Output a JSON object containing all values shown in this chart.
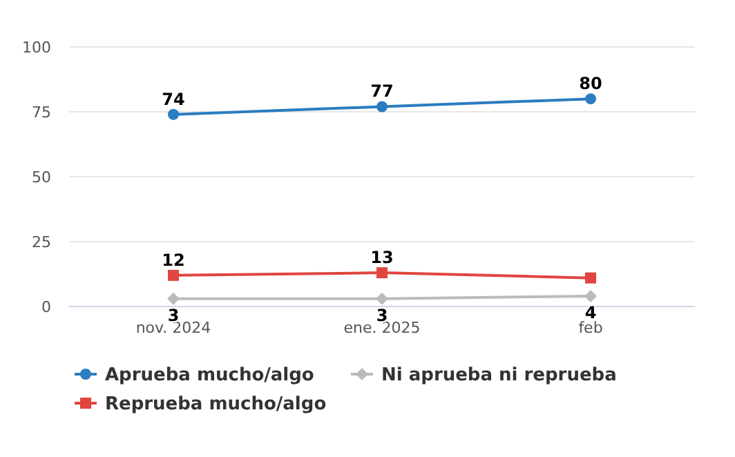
{
  "chart_data": {
    "type": "line",
    "categories": [
      "nov. 2024",
      "ene. 2025",
      "feb"
    ],
    "series": [
      {
        "name": "Aprueba mucho/algo",
        "color": "#2b7cc1",
        "marker": "circle",
        "values": [
          74,
          77,
          80
        ],
        "value_labels": [
          "74",
          "77",
          "80"
        ]
      },
      {
        "name": "Reprueba mucho/algo",
        "color": "#e0453f",
        "marker": "square",
        "values": [
          12,
          13,
          11
        ],
        "value_labels": [
          "12",
          "13",
          null
        ]
      },
      {
        "name": "Ni aprueba ni reprueba",
        "color": "#bbbbbb",
        "marker": "diamond",
        "values": [
          3,
          3,
          4
        ],
        "value_labels": [
          "3",
          "3",
          "4"
        ]
      }
    ],
    "ylim": [
      0,
      100
    ],
    "yticks": [
      0,
      25,
      50,
      75,
      100
    ],
    "grid": "y",
    "legend": "bottom"
  }
}
